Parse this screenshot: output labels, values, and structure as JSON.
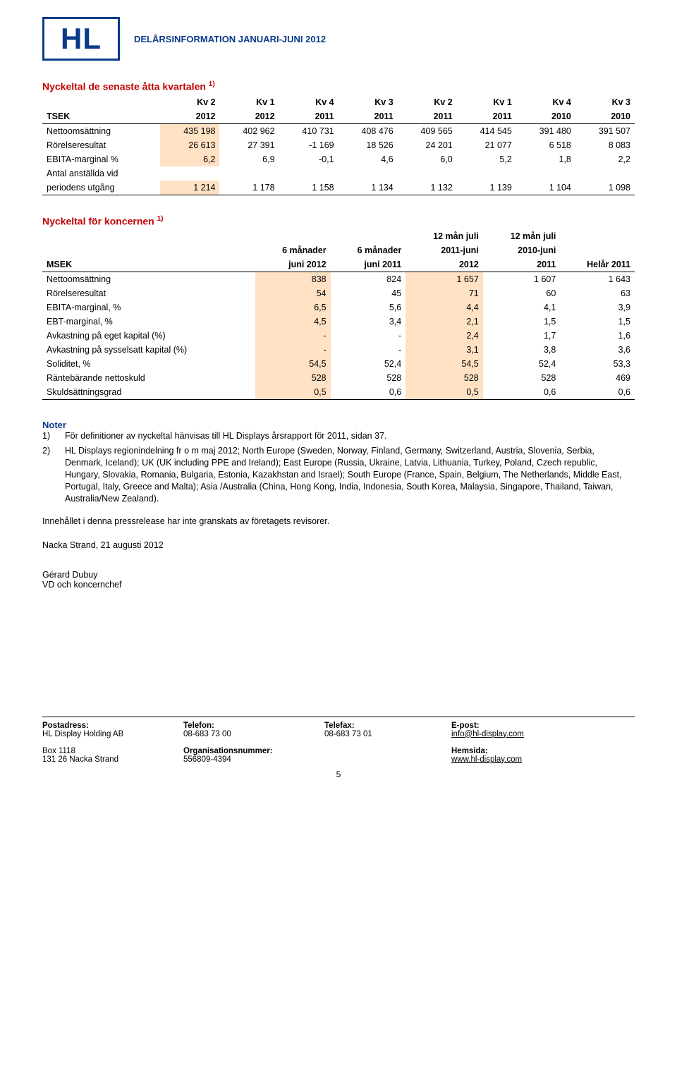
{
  "header": {
    "logo": "HL",
    "doc_title": "DELÅRSINFORMATION JANUARI-JUNI 2012"
  },
  "table1": {
    "title_html": "Nyckeltal de senaste åtta kvartalen <sup>1)</sup>",
    "col_group_top": [
      "",
      "Kv 2",
      "Kv 1",
      "Kv 4",
      "Kv 3",
      "Kv 2",
      "Kv 1",
      "Kv 4",
      "Kv 3"
    ],
    "col_group_bottom": [
      "TSEK",
      "2012",
      "2012",
      "2011",
      "2011",
      "2011",
      "2011",
      "2010",
      "2010"
    ],
    "rows": [
      {
        "label": "Nettoomsättning",
        "vals": [
          "435 198",
          "402 962",
          "410 731",
          "408 476",
          "409 565",
          "414 545",
          "391 480",
          "391 507"
        ],
        "hl": [
          0
        ]
      },
      {
        "label": "Rörelseresultat",
        "vals": [
          "26 613",
          "27 391",
          "-1 169",
          "18 526",
          "24 201",
          "21 077",
          "6 518",
          "8 083"
        ],
        "hl": [
          0
        ]
      },
      {
        "label": "EBITA-marginal %",
        "vals": [
          "6,2",
          "6,9",
          "-0,1",
          "4,6",
          "6,0",
          "5,2",
          "1,8",
          "2,2"
        ],
        "hl": [
          0
        ]
      },
      {
        "label": "Antal anställda vid",
        "vals": [
          "",
          "",
          "",
          "",
          "",
          "",
          "",
          ""
        ],
        "hl": []
      },
      {
        "label": "periodens utgång",
        "vals": [
          "1 214",
          "1 178",
          "1 158",
          "1 134",
          "1 132",
          "1 139",
          "1 104",
          "1 098"
        ],
        "hl": [
          0
        ]
      }
    ]
  },
  "table2": {
    "title_html": "Nyckeltal för koncernen <sup>1)</sup>",
    "head_rows": [
      [
        "",
        "",
        "",
        "12 mån juli",
        "12 mån juli",
        ""
      ],
      [
        "",
        "6 månader",
        "6 månader",
        "2011-juni",
        "2010-juni",
        ""
      ],
      [
        "MSEK",
        "juni 2012",
        "juni 2011",
        "2012",
        "2011",
        "Helår 2011"
      ]
    ],
    "rows": [
      {
        "label": "Nettoomsättning",
        "vals": [
          "838",
          "824",
          "1 657",
          "1 607",
          "1 643"
        ]
      },
      {
        "label": "Rörelseresultat",
        "vals": [
          "54",
          "45",
          "71",
          "60",
          "63"
        ]
      },
      {
        "label": "EBITA-marginal, %",
        "vals": [
          "6,5",
          "5,6",
          "4,4",
          "4,1",
          "3,9"
        ]
      },
      {
        "label": "EBT-marginal, %",
        "vals": [
          "4,5",
          "3,4",
          "2,1",
          "1,5",
          "1,5"
        ]
      },
      {
        "label": "Avkastning på eget kapital (%)",
        "vals": [
          "-",
          "-",
          "2,4",
          "1,7",
          "1,6"
        ]
      },
      {
        "label": "Avkastning på sysselsatt kapital (%)",
        "vals": [
          "-",
          "-",
          "3,1",
          "3,8",
          "3,6"
        ]
      },
      {
        "label": "Soliditet, %",
        "vals": [
          "54,5",
          "52,4",
          "54,5",
          "52,4",
          "53,3"
        ]
      },
      {
        "label": "Räntebärande nettoskuld",
        "vals": [
          "528",
          "528",
          "528",
          "528",
          "469"
        ]
      },
      {
        "label": "Skuldsättningsgrad",
        "vals": [
          "0,5",
          "0,6",
          "0,5",
          "0,6",
          "0,6"
        ]
      }
    ],
    "hl_cols": [
      0,
      2
    ]
  },
  "notes": {
    "heading": "Noter",
    "items": [
      {
        "n": "1)",
        "text": "För definitioner av nyckeltal hänvisas till HL Displays årsrapport för 2011, sidan 37."
      },
      {
        "n": "2)",
        "text": "HL Displays regionindelning fr o m maj 2012;  North Europe (Sweden, Norway, Finland, Germany, Switzerland, Austria, Slovenia, Serbia,  Denmark,  Iceland); UK (UK including PPE and Ireland); East Europe (Russia, Ukraine, Latvia, Lithuania, Turkey, Poland, Czech republic, Hungary, Slovakia,  Romania, Bulgaria, Estonia, Kazakhstan and Israel); South  Europe (France, Spain, Belgium, The Netherlands, Middle East, Portugal, Italy, Greece and Malta);  Asia /Australia (China, Hong Kong, India, Indonesia, South Korea, Malaysia, Singapore, Thailand, Taiwan, Australia/New Zealand)."
      }
    ],
    "disclaimer": "Innehållet i denna pressrelease har inte granskats av företagets revisorer."
  },
  "signoff": {
    "place_date": "Nacka Strand, 21 augusti 2012",
    "name": "Gérard Dubuy",
    "role": "VD och koncernchef"
  },
  "footer": {
    "cells": [
      {
        "lab": "Postadress:",
        "val": "HL Display Holding AB"
      },
      {
        "lab": "Telefon:",
        "val": "08-683 73 00"
      },
      {
        "lab": "Telefax:",
        "val": "08-683 73 01"
      },
      {
        "lab": "E-post:",
        "val": " info@hl-display.com",
        "link": true
      },
      {
        "lab": "Box 1118",
        "val": "131 26 Nacka Strand",
        "plain": true
      },
      {
        "lab": "Organisationsnummer:",
        "val": "556809-4394"
      },
      {
        "lab": "",
        "val": ""
      },
      {
        "lab": "Hemsida:",
        "val": "www.hl-display.com",
        "link": true
      }
    ],
    "pagenum": "5"
  }
}
